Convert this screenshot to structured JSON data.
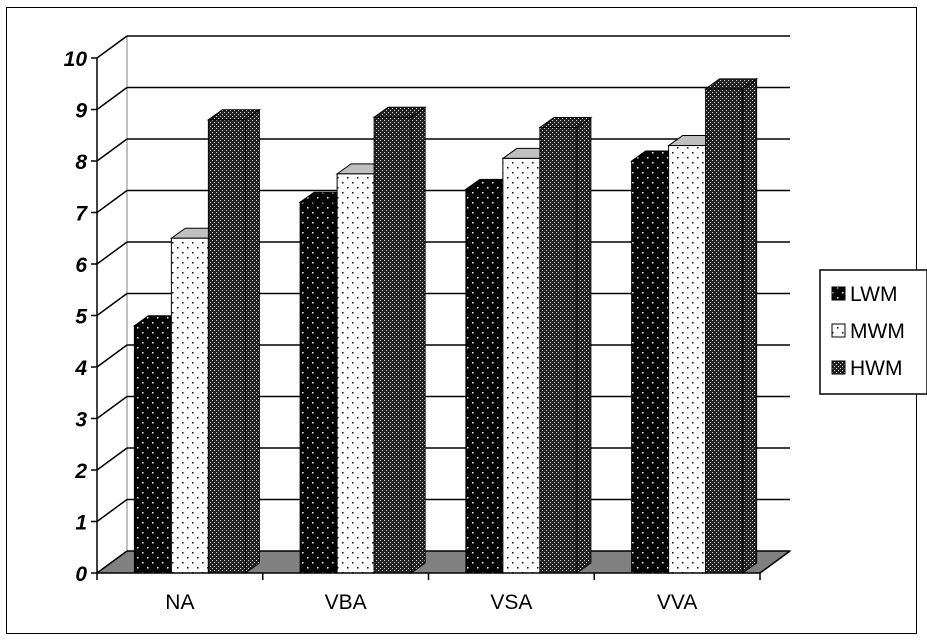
{
  "chart_data": {
    "type": "bar",
    "title": "",
    "xlabel": "",
    "ylabel": "",
    "categories": [
      "NA",
      "VBA",
      "VSA",
      "VVA"
    ],
    "series": [
      {
        "name": "LWM",
        "values": [
          4.8,
          7.2,
          7.45,
          8.0
        ],
        "pattern": "sparse-dots-on-black"
      },
      {
        "name": "MWM",
        "values": [
          6.5,
          7.75,
          8.05,
          8.3
        ],
        "pattern": "sparse-dots-on-white"
      },
      {
        "name": "HWM",
        "values": [
          8.8,
          8.85,
          8.65,
          9.4
        ],
        "pattern": "dense-checker"
      }
    ],
    "ylim": [
      0,
      10
    ],
    "yticks": [
      "0",
      "1",
      "2",
      "3",
      "4",
      "5",
      "6",
      "7",
      "8",
      "9",
      "10"
    ],
    "grid": true,
    "legend_position": "right",
    "style": "3d"
  }
}
